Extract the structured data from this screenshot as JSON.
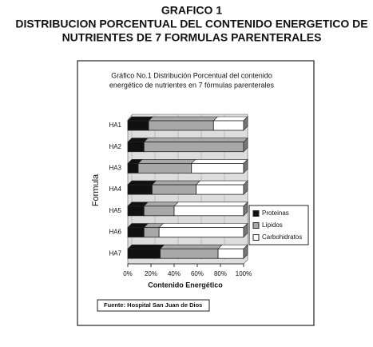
{
  "header": {
    "lines": [
      "GRAFICO 1",
      "DISTRIBUCION PORCENTUAL DEL CONTENIDO ENERGETICO DE",
      "NUTRIENTES DE 7 FORMULAS PARENTERALES"
    ]
  },
  "chart_data": {
    "type": "stacked_bar_horizontal",
    "title": [
      "Gráfico No.1 Distribución Porcentual del contenido",
      "energético de nutrientes en 7 fórmulas parenterales"
    ],
    "y_label": "Formula",
    "x_label": "Contenido Energético",
    "categories": [
      "HA1",
      "HA2",
      "HA3",
      "HA4",
      "HA5",
      "HA6",
      "HA7"
    ],
    "series": [
      {
        "name": "Proteinas",
        "color": "#111111",
        "values": [
          18,
          14,
          9,
          21,
          14,
          14,
          28
        ]
      },
      {
        "name": "Lípidos",
        "color": "#a8a8a8",
        "values": [
          56,
          86,
          46,
          38,
          26,
          13,
          50
        ]
      },
      {
        "name": "Carbohidratos",
        "color": "#ffffff",
        "values": [
          26,
          0,
          45,
          41,
          60,
          73,
          22
        ]
      }
    ],
    "xlim": [
      0,
      100
    ],
    "xticks": [
      {
        "value": 0,
        "label": "0%"
      },
      {
        "value": 20,
        "label": "20%"
      },
      {
        "value": 40,
        "label": "40%"
      },
      {
        "value": 60,
        "label": "60%"
      },
      {
        "value": 80,
        "label": "80%"
      },
      {
        "value": 100,
        "label": "100%"
      }
    ],
    "grid": true,
    "legend": "right",
    "source": "Fuente: Hospital San Juan de Dios"
  }
}
